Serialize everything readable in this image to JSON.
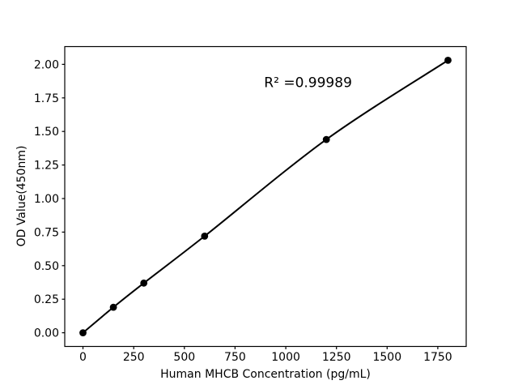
{
  "figure": {
    "background": "#ffffff",
    "plot_background": "#ffffff",
    "axis_color": "#000000"
  },
  "chart_data": {
    "type": "line",
    "title": "",
    "xlabel": "Human MHCB Concentration (pg/mL)",
    "ylabel": "OD Value(450nm)",
    "x": [
      0,
      150,
      300,
      600,
      1200,
      1800
    ],
    "y": [
      0.0,
      0.19,
      0.37,
      0.72,
      1.44,
      2.03
    ],
    "series": [
      {
        "name": "standard-curve",
        "line_color": "#000000",
        "marker": "circle",
        "marker_color": "#000000"
      }
    ],
    "xlim": [
      -90,
      1890
    ],
    "ylim": [
      -0.102,
      2.132
    ],
    "x_ticks": {
      "values": [
        0,
        250,
        500,
        750,
        1000,
        1250,
        1500,
        1750
      ],
      "labels": [
        "0",
        "250",
        "500",
        "750",
        "1000",
        "1250",
        "1500",
        "1750"
      ]
    },
    "y_ticks": {
      "values": [
        0.0,
        0.25,
        0.5,
        0.75,
        1.0,
        1.25,
        1.5,
        1.75,
        2.0
      ],
      "labels": [
        "0.00",
        "0.25",
        "0.50",
        "0.75",
        "1.00",
        "1.25",
        "1.50",
        "1.75",
        "2.00"
      ]
    },
    "annotation": {
      "text": "R² =0.99989",
      "x": 1110,
      "y": 1.86
    },
    "grid": false,
    "legend": null,
    "curve_style": "smooth"
  }
}
